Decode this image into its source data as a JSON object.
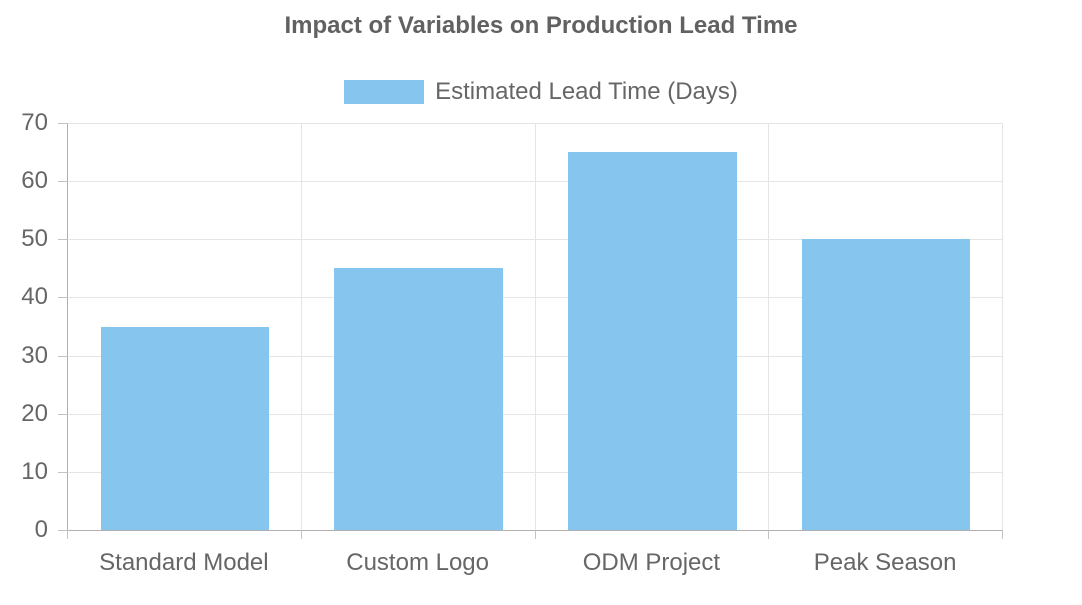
{
  "chart_data": {
    "type": "bar",
    "title": "Impact of Variables on Production Lead Time",
    "categories": [
      "Standard Model",
      "Custom Logo",
      "ODM Project",
      "Peak Season"
    ],
    "series": [
      {
        "name": "Estimated Lead Time (Days)",
        "values": [
          35,
          45,
          65,
          50
        ],
        "color": "#85c5ee"
      }
    ],
    "xlabel": "",
    "ylabel": "",
    "ylim": [
      0,
      70
    ],
    "yticks": [
      0,
      10,
      20,
      30,
      40,
      50,
      60,
      70
    ],
    "grid": true,
    "legend_position": "top",
    "bar_slot_fraction": 0.72,
    "colors": {
      "grid": "#e5e5e5",
      "axis": "#b0b0b0",
      "tick": "#c3c3c3",
      "text": "#666666",
      "title": "#616161",
      "background": "#ffffff"
    }
  }
}
